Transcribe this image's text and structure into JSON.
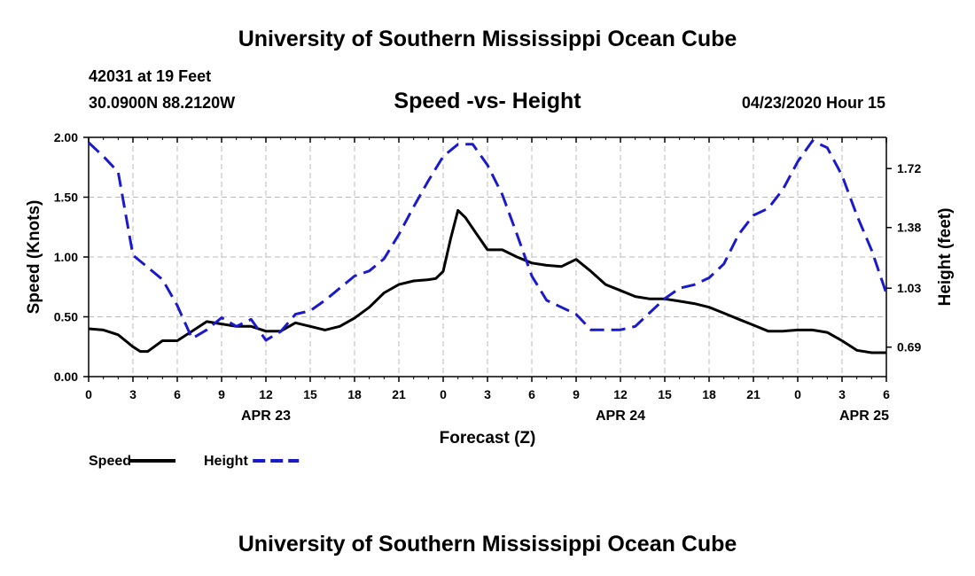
{
  "header": {
    "title": "University of Southern Mississippi Ocean Cube",
    "station": "42031 at 19 Feet",
    "coords": "30.0900N 88.2120W",
    "datetime": "04/23/2020 Hour 15"
  },
  "footer": {
    "title": "University of Southern Mississippi Ocean Cube"
  },
  "chart_data": {
    "type": "line",
    "title": "Speed -vs- Height",
    "xlabel": "Forecast (Z)",
    "ylabel_left": "Speed (Knots)",
    "ylabel_right": "Height (feet)",
    "x_range": [
      0,
      54
    ],
    "x_ticks": [
      0,
      3,
      6,
      9,
      12,
      15,
      18,
      21,
      24,
      27,
      30,
      33,
      36,
      39,
      42,
      45,
      48,
      51,
      54
    ],
    "x_tick_labels": [
      "0",
      "3",
      "6",
      "9",
      "12",
      "15",
      "18",
      "21",
      "0",
      "3",
      "6",
      "9",
      "12",
      "15",
      "18",
      "21",
      "0",
      "3",
      "6"
    ],
    "date_labels": [
      {
        "x": 12,
        "label": "APR 23"
      },
      {
        "x": 36,
        "label": "APR 24"
      },
      {
        "x": 52.5,
        "label": "APR 25"
      }
    ],
    "y_left": {
      "range": [
        0,
        2.0
      ],
      "ticks": [
        0.0,
        0.5,
        1.0,
        1.5,
        2.0
      ],
      "tick_labels": [
        "0.00",
        "0.50",
        "1.00",
        "1.50",
        "2.00"
      ]
    },
    "y_right": {
      "range": [
        0.52,
        1.9
      ],
      "ticks": [
        0.69,
        1.03,
        1.38,
        1.72
      ],
      "tick_labels": [
        "0.69",
        "1.03",
        "1.38",
        "1.72"
      ]
    },
    "grid": true,
    "series": [
      {
        "name": "Speed",
        "axis": "left",
        "color": "#000000",
        "dash": "solid",
        "x": [
          0,
          1,
          2,
          3,
          3.5,
          4,
          5,
          6,
          7,
          8,
          9,
          10,
          11,
          12,
          13,
          14,
          15,
          16,
          17,
          18,
          19,
          20,
          21,
          22,
          23,
          23.5,
          24,
          24.5,
          25,
          25.5,
          26,
          27,
          28,
          29,
          30,
          31,
          32,
          33,
          34,
          35,
          36,
          37,
          38,
          39,
          40,
          41,
          42,
          43,
          44,
          45,
          46,
          47,
          48,
          49,
          50,
          51,
          52,
          53,
          54
        ],
        "values": [
          0.4,
          0.39,
          0.35,
          0.25,
          0.21,
          0.21,
          0.3,
          0.3,
          0.38,
          0.46,
          0.44,
          0.42,
          0.42,
          0.38,
          0.38,
          0.45,
          0.42,
          0.39,
          0.42,
          0.49,
          0.58,
          0.7,
          0.77,
          0.8,
          0.81,
          0.82,
          0.88,
          1.15,
          1.39,
          1.33,
          1.24,
          1.06,
          1.06,
          1.0,
          0.95,
          0.93,
          0.92,
          0.98,
          0.88,
          0.77,
          0.72,
          0.67,
          0.65,
          0.65,
          0.63,
          0.61,
          0.58,
          0.53,
          0.48,
          0.43,
          0.38,
          0.38,
          0.39,
          0.39,
          0.37,
          0.3,
          0.22,
          0.2,
          0.2
        ]
      },
      {
        "name": "Height",
        "axis": "right",
        "color": "#1a1acc",
        "dash": "dashed",
        "x": [
          0,
          1,
          2,
          3,
          4,
          5,
          6,
          7,
          8,
          9,
          10,
          11,
          12,
          13,
          14,
          15,
          16,
          17,
          18,
          19,
          20,
          21,
          22,
          23,
          24,
          25,
          26,
          27,
          28,
          29,
          30,
          31,
          32,
          33,
          34,
          35,
          36,
          37,
          38,
          39,
          40,
          41,
          42,
          43,
          44,
          45,
          46,
          47,
          48,
          49,
          50,
          51,
          52,
          53,
          54
        ],
        "values": [
          1.87,
          1.79,
          1.7,
          1.22,
          1.15,
          1.08,
          0.93,
          0.74,
          0.79,
          0.86,
          0.81,
          0.85,
          0.73,
          0.78,
          0.88,
          0.9,
          0.96,
          1.03,
          1.1,
          1.13,
          1.2,
          1.34,
          1.5,
          1.65,
          1.79,
          1.86,
          1.86,
          1.74,
          1.57,
          1.34,
          1.1,
          0.96,
          0.92,
          0.88,
          0.79,
          0.79,
          0.79,
          0.81,
          0.89,
          0.97,
          1.03,
          1.05,
          1.09,
          1.17,
          1.34,
          1.45,
          1.49,
          1.6,
          1.76,
          1.88,
          1.84,
          1.68,
          1.45,
          1.25,
          1.0
        ]
      }
    ]
  },
  "legend": [
    {
      "label": "Speed",
      "color": "#000000",
      "dash": "solid"
    },
    {
      "label": "Height",
      "color": "#1a1acc",
      "dash": "dashed"
    }
  ]
}
